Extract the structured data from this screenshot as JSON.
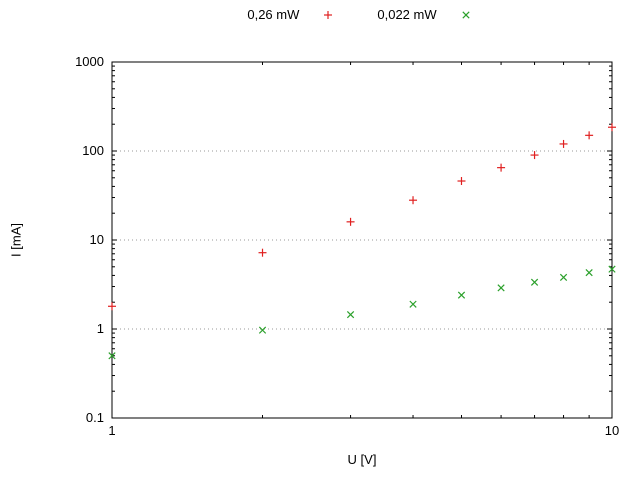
{
  "chart_data": {
    "type": "scatter",
    "title": "",
    "xlabel": "U [V]",
    "ylabel": "I [mA]",
    "x_scale": "log",
    "y_scale": "log",
    "xlim": [
      1,
      10
    ],
    "ylim": [
      0.1,
      1000
    ],
    "grid": "horizontal-dotted",
    "grid_color": "#999999",
    "axis_color": "#000000",
    "legend_position": "top-center",
    "x_ticks": [
      {
        "value": 1,
        "label": "1"
      },
      {
        "value": 10,
        "label": "10"
      }
    ],
    "x_minor_ticks": [
      2,
      3,
      4,
      5,
      6,
      7,
      8,
      9
    ],
    "y_ticks": [
      {
        "value": 1000,
        "label": "1000"
      },
      {
        "value": 100,
        "label": "100"
      },
      {
        "value": 10,
        "label": "10"
      },
      {
        "value": 1,
        "label": "1"
      },
      {
        "value": 0.1,
        "label": "0.1"
      }
    ],
    "y_minor_ticks": [
      0.2,
      0.3,
      0.4,
      0.5,
      0.6,
      0.7,
      0.8,
      0.9,
      2,
      3,
      4,
      5,
      6,
      7,
      8,
      9,
      20,
      30,
      40,
      50,
      60,
      70,
      80,
      90,
      200,
      300,
      400,
      500,
      600,
      700,
      800,
      900
    ],
    "grid_y_values": [
      1,
      10,
      100
    ],
    "series": [
      {
        "name": "0,26 mW",
        "marker": "plus",
        "color": "#e02020",
        "points": [
          [
            1,
            1.8
          ],
          [
            2,
            7.2
          ],
          [
            3,
            16
          ],
          [
            4,
            28
          ],
          [
            5,
            46
          ],
          [
            6,
            65
          ],
          [
            7,
            90
          ],
          [
            8,
            120
          ],
          [
            9,
            150
          ],
          [
            10,
            185
          ]
        ]
      },
      {
        "name": "0,022 mW",
        "marker": "cross",
        "color": "#2ba02b",
        "points": [
          [
            1,
            0.5
          ],
          [
            2,
            0.97
          ],
          [
            3,
            1.45
          ],
          [
            4,
            1.9
          ],
          [
            5,
            2.4
          ],
          [
            6,
            2.9
          ],
          [
            7,
            3.35
          ],
          [
            8,
            3.8
          ],
          [
            9,
            4.3
          ],
          [
            10,
            4.7
          ]
        ]
      }
    ]
  }
}
